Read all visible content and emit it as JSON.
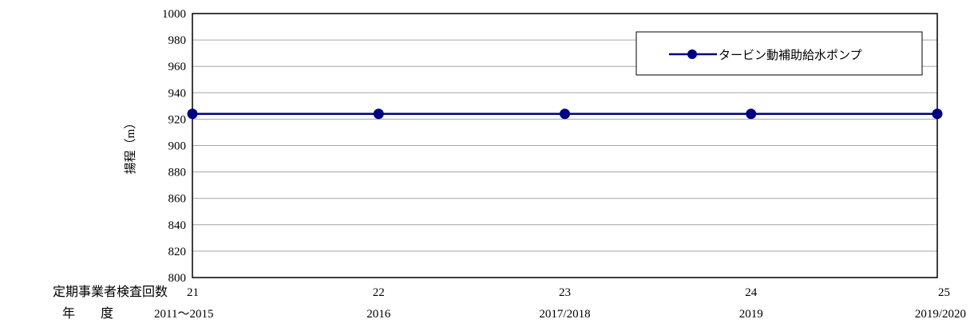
{
  "chart_data": {
    "type": "line",
    "title": "",
    "ylabel": "揚程（m）",
    "ylim": [
      800,
      1000
    ],
    "ytick_step": 20,
    "grid": true,
    "legend_position": "top-right",
    "row_labels": {
      "inspection": "定期事業者検査回数",
      "year": "年　度"
    },
    "categories": [
      {
        "inspection": "21",
        "year": "2011～2015"
      },
      {
        "inspection": "22",
        "year": "2016"
      },
      {
        "inspection": "23",
        "year": "2017/2018"
      },
      {
        "inspection": "24",
        "year": "2019"
      },
      {
        "inspection": "25",
        "year": "2019/2020"
      }
    ],
    "series": [
      {
        "name": "タービン動補助給水ポンプ",
        "color": "#000080",
        "values": [
          924,
          924,
          924,
          924,
          924
        ]
      }
    ]
  }
}
